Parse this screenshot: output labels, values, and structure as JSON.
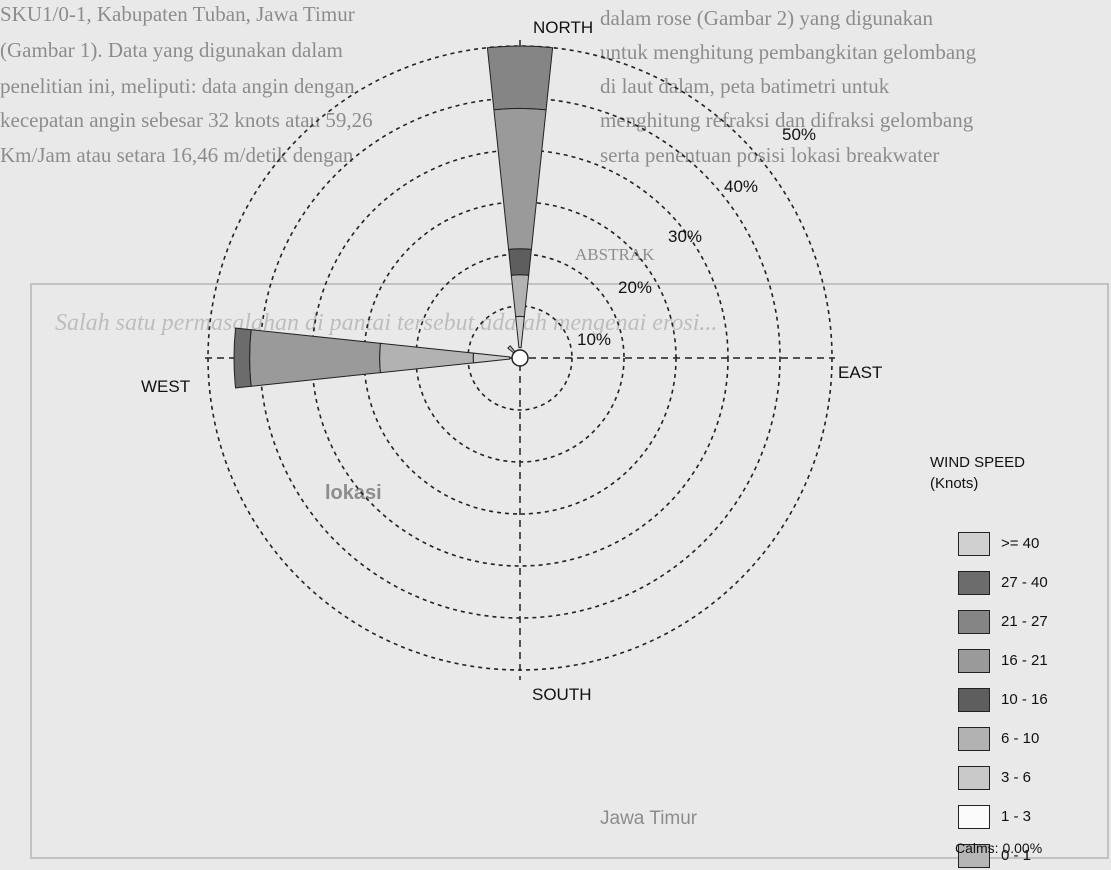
{
  "background_text": [
    "SKU1/0-1, Kabupaten Tuban, Jawa Timur",
    "(Gambar 1). Data yang digunakan dalam",
    "penelitian ini, meliputi: data angin dengan",
    "kecepatan angin sebesar 32 knots atau 59,26",
    "Km/Jam atau setara 16,46 m/detik dengan",
    "dalam rose (Gambar 2) yang digunakan",
    "untuk menghitung pembangkitan gelombang",
    "di laut dalam, peta batimetri untuk",
    "menghitung refraksi dan difraksi gelombang",
    "serta penentuan posisi lokasi breakwater",
    "ABSTRAK",
    "Salah satu permasalahan di pantai tersebut adalah mengenai erosi..."
  ],
  "chart_data": {
    "type": "wind-rose",
    "title": "",
    "directions": [
      "NORTH",
      "EAST",
      "SOUTH",
      "WEST"
    ],
    "ring_labels": [
      "10%",
      "20%",
      "30%",
      "40%",
      "50%"
    ],
    "rings_percent": [
      10,
      20,
      30,
      40,
      50,
      60
    ],
    "radial_axis_max": 60,
    "grid": true,
    "speed_bins": [
      "0 - 1",
      "1 - 3",
      "3 - 6",
      "6 - 10",
      "10 - 16",
      "16 - 21",
      "21 - 27",
      "27 - 40",
      ">= 40"
    ],
    "bin_colors": [
      "#b6b6b6",
      "#fbfbfb",
      "#c9c9c9",
      "#b2b2b2",
      "#5e5e5e",
      "#9a9a9a",
      "#858585",
      "#6c6c6c",
      "#d0d0d0"
    ],
    "sectors": [
      {
        "direction": "N",
        "angle_deg": 0,
        "segments": [
          {
            "bin": "3 - 6",
            "from": 2,
            "to": 8
          },
          {
            "bin": "6 - 10",
            "from": 8,
            "to": 16
          },
          {
            "bin": "10 - 16",
            "from": 16,
            "to": 21
          },
          {
            "bin": "16 - 21",
            "from": 21,
            "to": 48
          },
          {
            "bin": "21 - 27",
            "from": 48,
            "to": 60
          }
        ]
      },
      {
        "direction": "NNE",
        "angle_deg": 22.5,
        "segments": [
          {
            "bin": "3 - 6",
            "from": 0,
            "to": 1
          }
        ]
      },
      {
        "direction": "NE",
        "angle_deg": 45,
        "segments": [
          {
            "bin": "3 - 6",
            "from": 0,
            "to": 0.8
          }
        ]
      },
      {
        "direction": "E",
        "angle_deg": 90,
        "segments": [
          {
            "bin": "3 - 6",
            "from": 0,
            "to": 1
          }
        ]
      },
      {
        "direction": "SE",
        "angle_deg": 135,
        "segments": [
          {
            "bin": "3 - 6",
            "from": 0,
            "to": 0.6
          }
        ]
      },
      {
        "direction": "S",
        "angle_deg": 180,
        "segments": [
          {
            "bin": "3 - 6",
            "from": 0,
            "to": 0.6
          }
        ]
      },
      {
        "direction": "SW",
        "angle_deg": 225,
        "segments": [
          {
            "bin": "3 - 6",
            "from": 0,
            "to": 0.6
          }
        ]
      },
      {
        "direction": "WSW",
        "angle_deg": 247.5,
        "segments": [
          {
            "bin": "3 - 6",
            "from": 0,
            "to": 1
          }
        ]
      },
      {
        "direction": "W",
        "angle_deg": 270,
        "segments": [
          {
            "bin": "3 - 6",
            "from": 2,
            "to": 9
          },
          {
            "bin": "6 - 10",
            "from": 9,
            "to": 27
          },
          {
            "bin": "16 - 21",
            "from": 27,
            "to": 52
          },
          {
            "bin": "27 - 40",
            "from": 52,
            "to": 55
          }
        ]
      },
      {
        "direction": "WNW",
        "angle_deg": 292.5,
        "segments": [
          {
            "bin": "3 - 6",
            "from": 0,
            "to": 1.5
          }
        ]
      },
      {
        "direction": "NW",
        "angle_deg": 315,
        "segments": [
          {
            "bin": "3 - 6",
            "from": 0,
            "to": 3
          }
        ]
      },
      {
        "direction": "NNW",
        "angle_deg": 337.5,
        "segments": [
          {
            "bin": "3 - 6",
            "from": 0,
            "to": 1.5
          }
        ]
      }
    ]
  },
  "legend": {
    "title_line1": "WIND SPEED",
    "title_line2": "(Knots)",
    "items": [
      {
        "label": ">= 40",
        "color": "#d0d0d0"
      },
      {
        "label": "27 - 40",
        "color": "#6c6c6c"
      },
      {
        "label": "21 - 27",
        "color": "#858585"
      },
      {
        "label": "16 - 21",
        "color": "#9a9a9a"
      },
      {
        "label": "10 - 16",
        "color": "#5e5e5e"
      },
      {
        "label": "6 - 10",
        "color": "#b2b2b2"
      },
      {
        "label": "3 - 6",
        "color": "#c9c9c9"
      },
      {
        "label": "1 - 3",
        "color": "#fbfbfb"
      },
      {
        "label": "0 - 1",
        "color": "#b6b6b6"
      }
    ],
    "calms": "Calms: 0.00%"
  },
  "map_labels": [
    "lokasi",
    "Jawa Timur"
  ]
}
